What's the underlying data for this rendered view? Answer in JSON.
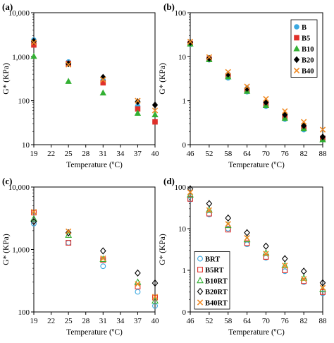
{
  "chart_data": [
    {
      "panel_label": "(a)",
      "type": "scatter",
      "ylabel": "G* (KPa)",
      "xlabel": "Temperature (ºC)",
      "x_axis": {
        "min": 19,
        "max": 40,
        "ticks": [
          19,
          22,
          25,
          28,
          31,
          34,
          37,
          40
        ]
      },
      "y_axis": {
        "scale": "log",
        "min": 10,
        "max": 10000,
        "ticks": [
          10,
          100,
          1000,
          10000
        ],
        "tick_labels": [
          "10",
          "100",
          "1,000",
          "10,000"
        ]
      },
      "legend": null,
      "series": [
        {
          "key": "B",
          "color": "#3aa8e0",
          "marker": "circle",
          "points": [
            [
              19,
              2400
            ],
            [
              25,
              760
            ],
            [
              31,
              290
            ],
            [
              37,
              75
            ],
            [
              40,
              33
            ]
          ]
        },
        {
          "key": "B5",
          "color": "#e0302a",
          "marker": "square",
          "points": [
            [
              19,
              1850
            ],
            [
              25,
              700
            ],
            [
              31,
              255
            ],
            [
              37,
              65
            ],
            [
              40,
              33
            ]
          ]
        },
        {
          "key": "B10",
          "color": "#33b033",
          "marker": "triangle",
          "points": [
            [
              19,
              1020
            ],
            [
              25,
              275
            ],
            [
              31,
              150
            ],
            [
              37,
              52
            ],
            [
              40,
              48
            ]
          ]
        },
        {
          "key": "B20",
          "color": "#000000",
          "marker": "diamond",
          "points": [
            [
              19,
              2250
            ],
            [
              25,
              690
            ],
            [
              31,
              340
            ],
            [
              37,
              95
            ],
            [
              40,
              80
            ]
          ]
        },
        {
          "key": "B40",
          "color": "#f08a24",
          "marker": "x",
          "points": [
            [
              19,
              2100
            ],
            [
              25,
              660
            ],
            [
              31,
              300
            ],
            [
              37,
              100
            ],
            [
              40,
              60
            ]
          ]
        }
      ]
    },
    {
      "panel_label": "(b)",
      "type": "scatter",
      "ylabel": "G* (KPa)",
      "xlabel": "Temperature (ºC)",
      "x_axis": {
        "min": 46,
        "max": 88,
        "ticks": [
          46,
          52,
          58,
          64,
          70,
          76,
          82,
          88
        ]
      },
      "y_axis": {
        "scale": "log",
        "min": 0.1,
        "max": 100,
        "ticks": [
          0.1,
          1,
          10,
          100
        ],
        "tick_labels": [
          "0",
          "1",
          "10",
          "100"
        ]
      },
      "legend": {
        "position": "top-right",
        "entries": [
          "B",
          "B5",
          "B10",
          "B20",
          "B40"
        ]
      },
      "series": [
        {
          "key": "B",
          "color": "#3aa8e0",
          "marker": "circle",
          "points": [
            [
              46,
              19
            ],
            [
              52,
              8.5
            ],
            [
              58,
              3.3
            ],
            [
              64,
              1.6
            ],
            [
              70,
              0.75
            ],
            [
              76,
              0.38
            ],
            [
              82,
              0.22
            ],
            [
              88,
              0.13
            ]
          ]
        },
        {
          "key": "B5",
          "color": "#e0302a",
          "marker": "square",
          "points": [
            [
              46,
              20
            ],
            [
              52,
              8.8
            ],
            [
              58,
              3.7
            ],
            [
              64,
              1.7
            ],
            [
              70,
              0.82
            ],
            [
              76,
              0.42
            ],
            [
              82,
              0.24
            ],
            [
              88,
              0.14
            ]
          ]
        },
        {
          "key": "B10",
          "color": "#33b033",
          "marker": "triangle",
          "points": [
            [
              46,
              19.5
            ],
            [
              52,
              8.6
            ],
            [
              58,
              3.5
            ],
            [
              64,
              1.65
            ],
            [
              70,
              0.78
            ],
            [
              76,
              0.4
            ],
            [
              82,
              0.23
            ],
            [
              88,
              0.13
            ]
          ]
        },
        {
          "key": "B20",
          "color": "#000000",
          "marker": "diamond",
          "points": [
            [
              46,
              21
            ],
            [
              52,
              9.2
            ],
            [
              58,
              4.0
            ],
            [
              64,
              1.9
            ],
            [
              70,
              0.92
            ],
            [
              76,
              0.48
            ],
            [
              82,
              0.27
            ],
            [
              88,
              0.15
            ]
          ]
        },
        {
          "key": "B40",
          "color": "#f08a24",
          "marker": "x",
          "points": [
            [
              46,
              22
            ],
            [
              52,
              9.8
            ],
            [
              58,
              4.5
            ],
            [
              64,
              2.1
            ],
            [
              70,
              1.1
            ],
            [
              76,
              0.58
            ],
            [
              82,
              0.33
            ],
            [
              88,
              0.22
            ]
          ]
        }
      ]
    },
    {
      "panel_label": "(c)",
      "type": "scatter",
      "ylabel": "G* (KPa)",
      "xlabel": "Temperature (ºC)",
      "x_axis": {
        "min": 19,
        "max": 40,
        "ticks": [
          19,
          22,
          25,
          28,
          31,
          34,
          37,
          40
        ]
      },
      "y_axis": {
        "scale": "log",
        "min": 100,
        "max": 10000,
        "ticks": [
          100,
          1000,
          10000
        ],
        "tick_labels": [
          "100",
          "1,000",
          "10,000"
        ]
      },
      "legend": null,
      "series": [
        {
          "key": "BRT",
          "color": "#3aa8e0",
          "marker": "circle",
          "points": [
            [
              19,
              2600
            ],
            [
              25,
              1280
            ],
            [
              31,
              540
            ],
            [
              37,
              210
            ],
            [
              40,
              125
            ]
          ]
        },
        {
          "key": "B5RT",
          "color": "#e0302a",
          "marker": "square",
          "points": [
            [
              19,
              3900
            ],
            [
              25,
              1280
            ],
            [
              31,
              680
            ],
            [
              37,
              255
            ],
            [
              40,
              170
            ]
          ]
        },
        {
          "key": "B10RT",
          "color": "#33b033",
          "marker": "triangle",
          "points": [
            [
              19,
              3100
            ],
            [
              25,
              1700
            ],
            [
              31,
              700
            ],
            [
              37,
              300
            ],
            [
              40,
              150
            ]
          ]
        },
        {
          "key": "B20RT",
          "color": "#000000",
          "marker": "diamond",
          "points": [
            [
              19,
              2800
            ],
            [
              25,
              1850
            ],
            [
              31,
              950
            ],
            [
              37,
              420
            ],
            [
              40,
              290
            ]
          ]
        },
        {
          "key": "B40RT",
          "color": "#f08a24",
          "marker": "x",
          "points": [
            [
              19,
              4000
            ],
            [
              25,
              1950
            ],
            [
              31,
              720
            ],
            [
              37,
              280
            ],
            [
              40,
              175
            ]
          ]
        }
      ]
    },
    {
      "panel_label": "(d)",
      "type": "scatter",
      "ylabel": "G* (KPa)",
      "xlabel": "Temperature (ºC)",
      "x_axis": {
        "min": 46,
        "max": 88,
        "ticks": [
          46,
          52,
          58,
          64,
          70,
          76,
          82,
          88
        ]
      },
      "y_axis": {
        "scale": "log",
        "min": 0.1,
        "max": 100,
        "ticks": [
          0.1,
          1,
          10,
          100
        ],
        "tick_labels": [
          "0",
          "1",
          "10",
          "100"
        ]
      },
      "legend": {
        "position": "bottom-left",
        "entries": [
          "BRT",
          "B5RT",
          "B10RT",
          "B20RT",
          "B40RT"
        ]
      },
      "series": [
        {
          "key": "BRT",
          "color": "#3aa8e0",
          "marker": "circle",
          "points": [
            [
              46,
              50
            ],
            [
              52,
              22
            ],
            [
              58,
              10
            ],
            [
              64,
              4.2
            ],
            [
              70,
              2.0
            ],
            [
              76,
              0.95
            ],
            [
              82,
              0.52
            ],
            [
              88,
              0.28
            ]
          ]
        },
        {
          "key": "B5RT",
          "color": "#e0302a",
          "marker": "square",
          "points": [
            [
              46,
              52
            ],
            [
              52,
              23
            ],
            [
              58,
              9.5
            ],
            [
              64,
              4.5
            ],
            [
              70,
              2.1
            ],
            [
              76,
              1.0
            ],
            [
              82,
              0.55
            ],
            [
              88,
              0.3
            ]
          ]
        },
        {
          "key": "B10RT",
          "color": "#33b033",
          "marker": "triangle",
          "points": [
            [
              46,
              65
            ],
            [
              52,
              28
            ],
            [
              58,
              12
            ],
            [
              64,
              5.5
            ],
            [
              70,
              2.6
            ],
            [
              76,
              1.3
            ],
            [
              82,
              0.65
            ],
            [
              88,
              0.35
            ]
          ]
        },
        {
          "key": "B20RT",
          "color": "#000000",
          "marker": "diamond",
          "points": [
            [
              46,
              90
            ],
            [
              52,
              40
            ],
            [
              58,
              18
            ],
            [
              64,
              8
            ],
            [
              70,
              3.8
            ],
            [
              76,
              1.9
            ],
            [
              82,
              0.95
            ],
            [
              88,
              0.5
            ]
          ]
        },
        {
          "key": "B40RT",
          "color": "#f08a24",
          "marker": "x",
          "points": [
            [
              46,
              75
            ],
            [
              52,
              28
            ],
            [
              58,
              13
            ],
            [
              64,
              6
            ],
            [
              70,
              2.5
            ],
            [
              76,
              1.3
            ],
            [
              82,
              0.62
            ],
            [
              88,
              0.38
            ]
          ]
        }
      ]
    }
  ]
}
